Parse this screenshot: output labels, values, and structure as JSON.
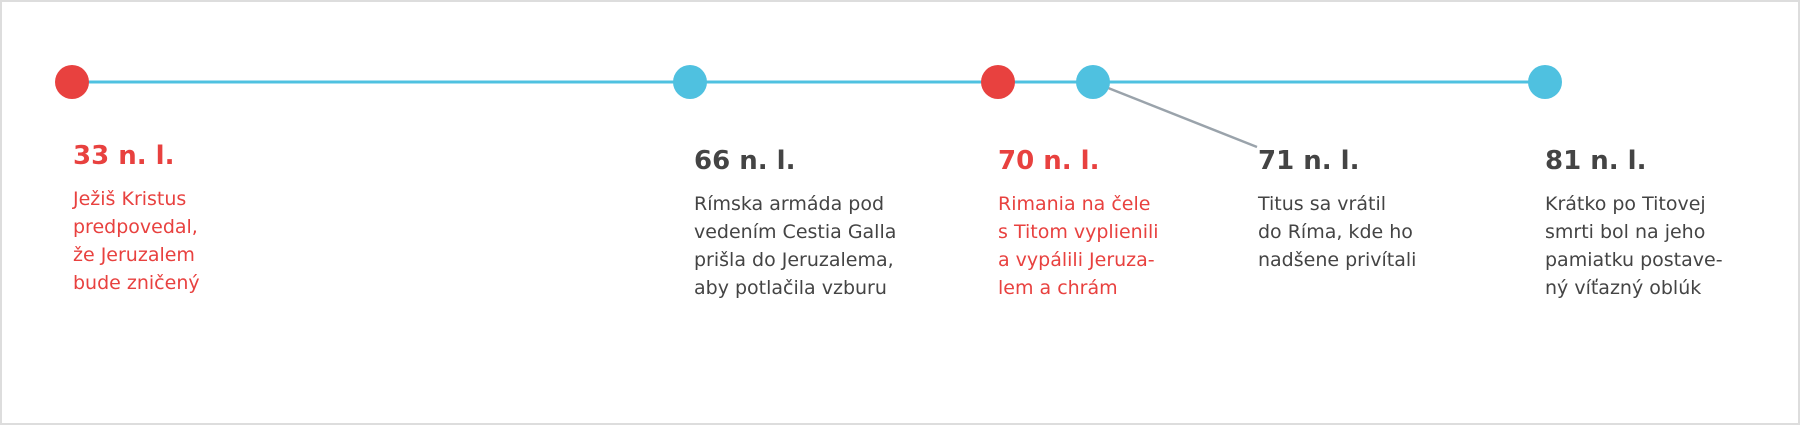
{
  "events": [
    {
      "date": "33 n. l.",
      "lines": [
        "Ježiš Kristus",
        "predpovedal,",
        "že Jeruzalem",
        "bude zničený"
      ]
    },
    {
      "date": "66 n. l.",
      "lines": [
        "Rímska armáda pod",
        "vedením Cestia Galla",
        "prišla do Jeruzalema,",
        "aby potlačila vzburu"
      ]
    },
    {
      "date": "70 n. l.",
      "lines": [
        "Rimania na čele",
        "s Titom vyplienili",
        "a vypálili Jeruza-",
        "lem a chrám"
      ]
    },
    {
      "date": "71 n. l.",
      "lines": [
        "Titus sa vrátil",
        "do Ríma, kde ho",
        "nadšene privítali"
      ]
    },
    {
      "date": "81 n. l.",
      "lines": [
        "Krátko po Titovej",
        "smrti bol na jeho",
        "pamiatku postave-",
        "ný víťazný oblúk"
      ]
    }
  ]
}
